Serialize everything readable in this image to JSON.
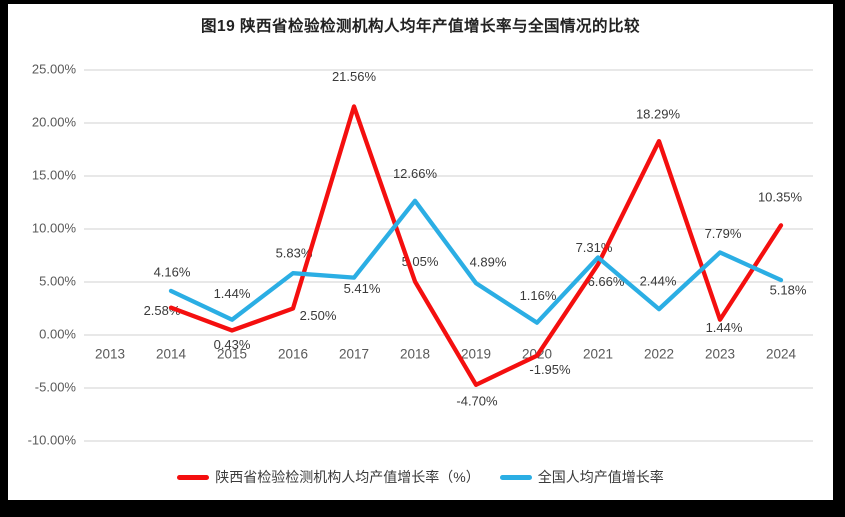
{
  "frame": {
    "border_color": "#000000",
    "background": "#ffffff"
  },
  "chart_data": {
    "type": "line",
    "title": "图19 陕西省检验检测机构人均年产值增长率与全国情况的比较",
    "x_categories": [
      "2013",
      "2014",
      "2015",
      "2016",
      "2017",
      "2018",
      "2019",
      "2020",
      "2021",
      "2022",
      "2023",
      "2024"
    ],
    "y_axis": {
      "min": -10,
      "max": 25,
      "tick_values": [
        25,
        20,
        15,
        10,
        5,
        0,
        -5,
        -10
      ],
      "tick_labels": [
        "25.00%",
        "20.00%",
        "15.00%",
        "10.00%",
        "5.00%",
        "0.00%",
        "-5.00%",
        "-10.00%"
      ]
    },
    "grid": true,
    "legend_position": "bottom",
    "colors": {
      "grid": "#d9d9d9",
      "axis_text": "#595959",
      "label_text": "#3a3a3a"
    },
    "series": [
      {
        "key": "shaanxi",
        "name": "陕西省检验检测机构人均产值增长率（%）",
        "color": "#f40f0f",
        "values": [
          null,
          2.58,
          0.43,
          2.5,
          21.56,
          5.05,
          -4.7,
          -1.95,
          6.66,
          18.29,
          1.44,
          10.35
        ],
        "labels": [
          "",
          "2.58%",
          "0.43%",
          "2.50%",
          "21.56%",
          "5.05%",
          "-4.70%",
          "-1.95%",
          "6.66%",
          "18.29%",
          "1.44%",
          "10.35%"
        ],
        "label_offsets": [
          [
            0,
            0
          ],
          [
            -9,
            4
          ],
          [
            0,
            15
          ],
          [
            25,
            8
          ],
          [
            0,
            -29
          ],
          [
            5,
            -19
          ],
          [
            1,
            17
          ],
          [
            13,
            15
          ],
          [
            8,
            18
          ],
          [
            -1,
            -26
          ],
          [
            4,
            9
          ],
          [
            -1,
            -27
          ]
        ]
      },
      {
        "key": "national",
        "name": "全国人均产值增长率",
        "color": "#2baee4",
        "values": [
          null,
          4.16,
          1.44,
          5.83,
          5.41,
          12.66,
          4.89,
          1.16,
          7.31,
          2.44,
          7.79,
          5.18
        ],
        "labels": [
          "",
          "4.16%",
          "1.44%",
          "5.83%",
          "5.41%",
          "12.66%",
          "4.89%",
          "1.16%",
          "7.31%",
          "2.44%",
          "7.79%",
          "5.18%"
        ],
        "label_offsets": [
          [
            0,
            0
          ],
          [
            1,
            -18
          ],
          [
            0,
            -25
          ],
          [
            1,
            -19
          ],
          [
            8,
            12
          ],
          [
            0,
            -26
          ],
          [
            12,
            -20
          ],
          [
            1,
            -26
          ],
          [
            -4,
            -9
          ],
          [
            -1,
            -27
          ],
          [
            3,
            -18
          ],
          [
            7,
            11
          ]
        ]
      }
    ]
  }
}
